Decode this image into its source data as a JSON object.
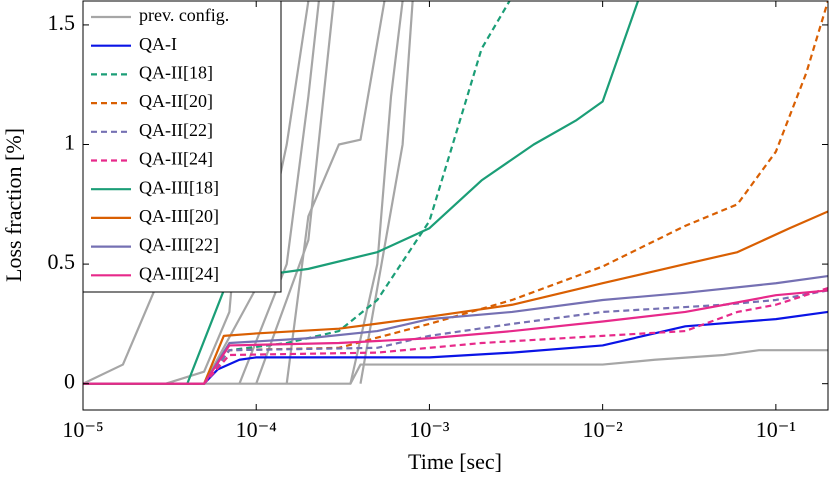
{
  "chart_data": {
    "type": "line",
    "x_scale": "log",
    "xlabel": "Time [sec]",
    "ylabel": "Loss fraction [%]",
    "xlim": [
      1e-05,
      0.2
    ],
    "ylim": [
      -0.11,
      1.6
    ],
    "xticks": [
      {
        "value": 1e-05,
        "label": "10⁻⁵"
      },
      {
        "value": 0.0001,
        "label": "10⁻⁴"
      },
      {
        "value": 0.001,
        "label": "10⁻³"
      },
      {
        "value": 0.01,
        "label": "10⁻²"
      },
      {
        "value": 0.1,
        "label": "10⁻¹"
      }
    ],
    "yticks": [
      0,
      0.5,
      1,
      1.5
    ],
    "legend": "upper left",
    "series": [
      {
        "name": "prev. config.",
        "color": "#a6a6a6",
        "dash": false,
        "x": [
          1e-05,
          0.00035,
          0.0004,
          0.01,
          0.02,
          0.05,
          0.08,
          0.2
        ],
        "values": [
          0,
          0,
          0.08,
          0.08,
          0.1,
          0.12,
          0.14,
          0.14
        ]
      },
      {
        "color": "#a6a6a6",
        "dash": false,
        "x": [
          1e-05,
          1.7e-05,
          2e-05,
          3e-05,
          4e-05
        ],
        "values": [
          0,
          0.08,
          0.2,
          0.5,
          1.6
        ]
      },
      {
        "color": "#a6a6a6",
        "dash": false,
        "x": [
          3e-05,
          5e-05,
          7e-05,
          0.0001
        ],
        "values": [
          0,
          0.05,
          0.3,
          1.6
        ]
      },
      {
        "color": "#a6a6a6",
        "dash": false,
        "x": [
          5e-05,
          0.0001,
          0.00015,
          0.0002
        ],
        "values": [
          0,
          0.4,
          1.0,
          1.6
        ]
      },
      {
        "color": "#a6a6a6",
        "dash": false,
        "x": [
          8e-05,
          0.00015,
          0.0002,
          0.00023
        ],
        "values": [
          0,
          0.5,
          1.2,
          1.6
        ]
      },
      {
        "color": "#a6a6a6",
        "dash": false,
        "x": [
          0.0001,
          0.0002,
          0.00028
        ],
        "values": [
          0,
          0.6,
          1.6
        ]
      },
      {
        "color": "#a6a6a6",
        "dash": false,
        "x": [
          0.00015,
          0.0002,
          0.0003,
          0.0004,
          0.00055
        ],
        "values": [
          0,
          0.7,
          1.0,
          1.02,
          1.6
        ]
      },
      {
        "color": "#a6a6a6",
        "dash": false,
        "x": [
          0.00035,
          0.0005,
          0.0006,
          0.0007
        ],
        "values": [
          0,
          0.5,
          1.2,
          1.6
        ]
      },
      {
        "color": "#a6a6a6",
        "dash": false,
        "x": [
          0.0004,
          0.0005,
          0.0007,
          0.0008
        ],
        "values": [
          0,
          0.4,
          1.0,
          1.6
        ]
      },
      {
        "name": "QA-I",
        "color": "#0a14e6",
        "dash": false,
        "x": [
          1e-05,
          5e-05,
          6e-05,
          8e-05,
          0.0001,
          0.0003,
          0.001,
          0.003,
          0.01,
          0.03,
          0.1,
          0.2
        ],
        "values": [
          0,
          0,
          0.06,
          0.1,
          0.11,
          0.11,
          0.11,
          0.13,
          0.16,
          0.24,
          0.27,
          0.3
        ]
      },
      {
        "name": "QA-II[18]",
        "color": "#1b9e77",
        "dash": true,
        "x": [
          1e-05,
          5e-05,
          7e-05,
          0.00015,
          0.0003,
          0.0005,
          0.001,
          0.0015,
          0.002,
          0.0029
        ],
        "values": [
          0,
          0,
          0.14,
          0.17,
          0.22,
          0.35,
          0.68,
          1.1,
          1.4,
          1.6
        ]
      },
      {
        "name": "QA-II[20]",
        "color": "#d95f02",
        "dash": true,
        "x": [
          1e-05,
          5e-05,
          7e-05,
          0.0003,
          0.001,
          0.003,
          0.01,
          0.03,
          0.06,
          0.1,
          0.15,
          0.2
        ],
        "values": [
          0,
          0,
          0.14,
          0.15,
          0.25,
          0.35,
          0.49,
          0.66,
          0.75,
          0.97,
          1.3,
          1.6
        ]
      },
      {
        "name": "QA-II[22]",
        "color": "#7570b3",
        "dash": true,
        "x": [
          1e-05,
          5e-05,
          7e-05,
          0.0005,
          0.001,
          0.003,
          0.01,
          0.05,
          0.1,
          0.2
        ],
        "values": [
          0,
          0,
          0.14,
          0.15,
          0.2,
          0.25,
          0.3,
          0.33,
          0.35,
          0.39
        ]
      },
      {
        "name": "QA-II[24]",
        "color": "#e7298a",
        "dash": true,
        "x": [
          1e-05,
          5e-05,
          7e-05,
          0.0005,
          0.002,
          0.01,
          0.03,
          0.06,
          0.1,
          0.2
        ],
        "values": [
          0,
          0,
          0.12,
          0.13,
          0.17,
          0.2,
          0.22,
          0.3,
          0.33,
          0.4
        ]
      },
      {
        "name": "QA-III[18]",
        "color": "#1b9e77",
        "dash": false,
        "x": [
          1e-05,
          4e-05,
          7e-05,
          0.0001,
          0.0002,
          0.0005,
          0.001,
          0.002,
          0.004,
          0.007,
          0.01,
          0.016
        ],
        "values": [
          0,
          0,
          0.45,
          0.45,
          0.48,
          0.55,
          0.65,
          0.85,
          1.0,
          1.1,
          1.18,
          1.6
        ]
      },
      {
        "name": "QA-III[20]",
        "color": "#d95f02",
        "dash": false,
        "x": [
          1e-05,
          5e-05,
          6.5e-05,
          0.0001,
          0.0003,
          0.001,
          0.003,
          0.01,
          0.03,
          0.06,
          0.12,
          0.2
        ],
        "values": [
          0,
          0,
          0.2,
          0.21,
          0.23,
          0.28,
          0.33,
          0.42,
          0.5,
          0.55,
          0.65,
          0.72
        ]
      },
      {
        "name": "QA-III[22]",
        "color": "#7570b3",
        "dash": false,
        "x": [
          1e-05,
          5e-05,
          7e-05,
          0.0002,
          0.0005,
          0.001,
          0.003,
          0.01,
          0.03,
          0.1,
          0.2
        ],
        "values": [
          0,
          0,
          0.17,
          0.19,
          0.22,
          0.27,
          0.3,
          0.35,
          0.38,
          0.42,
          0.45
        ]
      },
      {
        "name": "QA-III[24]",
        "color": "#e7298a",
        "dash": false,
        "x": [
          1e-05,
          5e-05,
          7e-05,
          0.0003,
          0.001,
          0.003,
          0.01,
          0.03,
          0.06,
          0.1,
          0.2
        ],
        "values": [
          0,
          0,
          0.16,
          0.17,
          0.19,
          0.22,
          0.26,
          0.3,
          0.34,
          0.37,
          0.39
        ]
      }
    ]
  }
}
